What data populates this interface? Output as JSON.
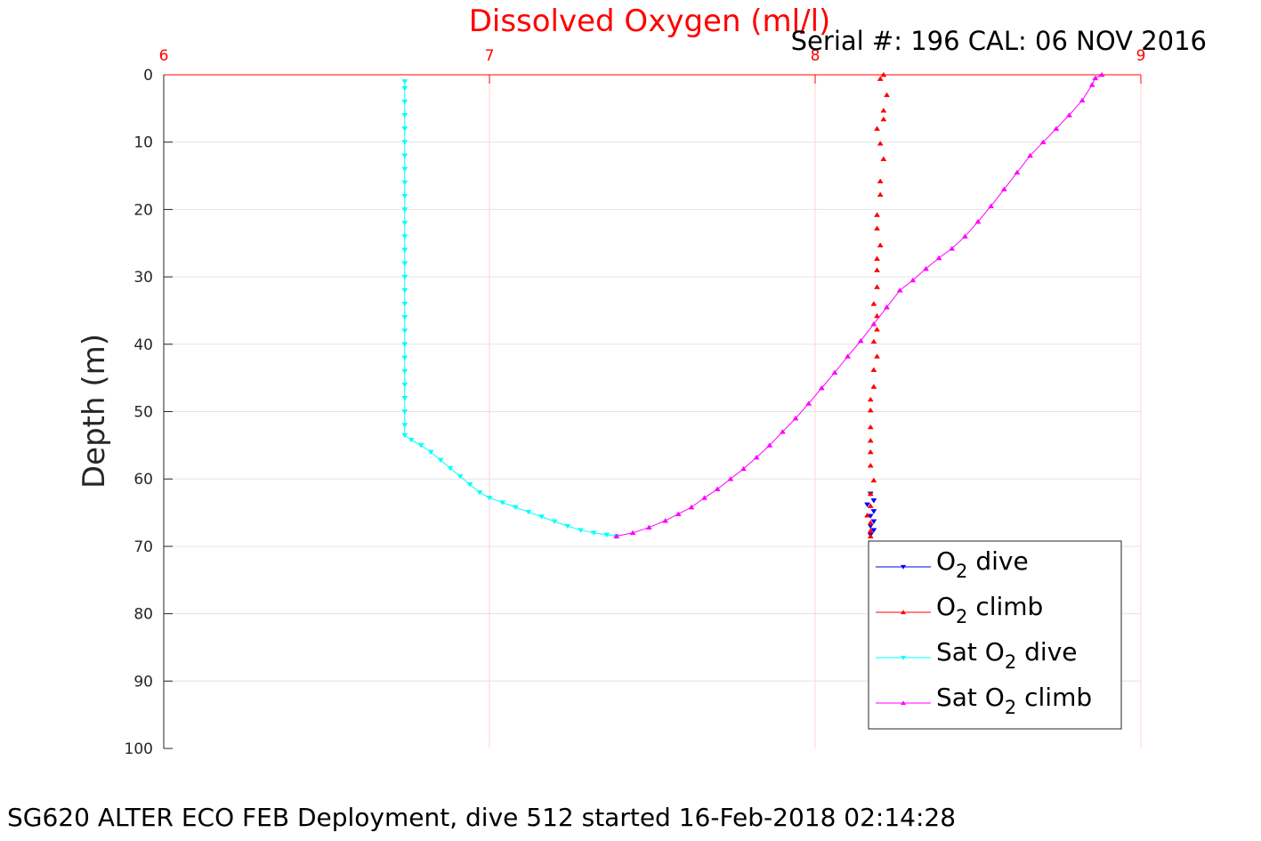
{
  "chart_data": {
    "type": "line",
    "title": "Dissolved Oxygen (ml/l)",
    "serial": "Serial #: 196  CAL: 06 NOV 2016",
    "caption": "SG620 ALTER ECO FEB Deployment, dive 512 started 16-Feb-2018 02:14:28",
    "xlabel": "",
    "ylabel": "Depth (m)",
    "xlim": [
      6,
      9
    ],
    "ylim": [
      0,
      100
    ],
    "y_reversed": true,
    "x_axis_position": "top",
    "x_ticks": [
      "6",
      "7",
      "8",
      "9"
    ],
    "y_ticks": [
      "0",
      "10",
      "20",
      "30",
      "40",
      "50",
      "60",
      "70",
      "80",
      "90",
      "100"
    ],
    "grid": true,
    "legend_position": "bottom-right",
    "legend": [
      {
        "prefix": "O",
        "sub": "2",
        "suffix": " dive"
      },
      {
        "prefix": "O",
        "sub": "2",
        "suffix": " climb"
      },
      {
        "prefix": "Sat O",
        "sub": "2",
        "suffix": " dive"
      },
      {
        "prefix": "Sat O",
        "sub": "2",
        "suffix": " climb"
      }
    ],
    "series": [
      {
        "name": "O2 dive",
        "color": "#0000ff",
        "marker": "down",
        "line": false,
        "points": [
          [
            8.17,
            62.2
          ],
          [
            8.18,
            63.2
          ],
          [
            8.16,
            63.8
          ],
          [
            8.18,
            64.8
          ],
          [
            8.17,
            65.5
          ],
          [
            8.18,
            66.3
          ],
          [
            8.17,
            67.0
          ],
          [
            8.18,
            67.6
          ],
          [
            8.17,
            68.3
          ]
        ]
      },
      {
        "name": "O2 climb",
        "color": "#ff0000",
        "marker": "up",
        "line": false,
        "points": [
          [
            8.21,
            0
          ],
          [
            8.2,
            0.6
          ],
          [
            8.22,
            3.0
          ],
          [
            8.21,
            5.3
          ],
          [
            8.21,
            6.6
          ],
          [
            8.19,
            8.0
          ],
          [
            8.2,
            10.2
          ],
          [
            8.21,
            12.5
          ],
          [
            8.2,
            15.8
          ],
          [
            8.2,
            17.8
          ],
          [
            8.19,
            20.8
          ],
          [
            8.19,
            22.8
          ],
          [
            8.2,
            25.3
          ],
          [
            8.19,
            27.3
          ],
          [
            8.19,
            29.0
          ],
          [
            8.19,
            31.5
          ],
          [
            8.18,
            34.0
          ],
          [
            8.19,
            35.8
          ],
          [
            8.19,
            37.8
          ],
          [
            8.18,
            39.6
          ],
          [
            8.19,
            41.8
          ],
          [
            8.18,
            43.8
          ],
          [
            8.18,
            46.3
          ],
          [
            8.17,
            48.2
          ],
          [
            8.17,
            49.8
          ],
          [
            8.17,
            52.3
          ],
          [
            8.17,
            54.3
          ],
          [
            8.17,
            56.0
          ],
          [
            8.17,
            58.0
          ],
          [
            8.18,
            60.2
          ],
          [
            8.17,
            62.2
          ],
          [
            8.17,
            64.0
          ],
          [
            8.16,
            65.4
          ],
          [
            8.17,
            66.5
          ],
          [
            8.17,
            67.7
          ],
          [
            8.17,
            68.5
          ]
        ]
      },
      {
        "name": "Sat O2 dive",
        "color": "#00ffff",
        "marker": "down",
        "line": true,
        "points": [
          [
            6.74,
            1
          ],
          [
            6.74,
            2
          ],
          [
            6.74,
            4
          ],
          [
            6.74,
            6
          ],
          [
            6.74,
            8
          ],
          [
            6.74,
            10
          ],
          [
            6.74,
            12
          ],
          [
            6.74,
            14
          ],
          [
            6.74,
            16
          ],
          [
            6.74,
            18
          ],
          [
            6.74,
            20
          ],
          [
            6.74,
            22
          ],
          [
            6.74,
            24
          ],
          [
            6.74,
            26
          ],
          [
            6.74,
            28
          ],
          [
            6.74,
            30
          ],
          [
            6.74,
            32
          ],
          [
            6.74,
            34
          ],
          [
            6.74,
            36
          ],
          [
            6.74,
            38
          ],
          [
            6.74,
            40
          ],
          [
            6.74,
            42
          ],
          [
            6.74,
            44
          ],
          [
            6.74,
            46
          ],
          [
            6.74,
            48
          ],
          [
            6.74,
            50
          ],
          [
            6.74,
            52
          ],
          [
            6.74,
            53.5
          ],
          [
            6.76,
            54.2
          ],
          [
            6.79,
            55.0
          ],
          [
            6.82,
            56.0
          ],
          [
            6.85,
            57.2
          ],
          [
            6.88,
            58.4
          ],
          [
            6.91,
            59.6
          ],
          [
            6.94,
            60.8
          ],
          [
            6.97,
            62.0
          ],
          [
            7.0,
            62.8
          ],
          [
            7.04,
            63.5
          ],
          [
            7.08,
            64.2
          ],
          [
            7.12,
            64.9
          ],
          [
            7.16,
            65.6
          ],
          [
            7.2,
            66.3
          ],
          [
            7.24,
            67.0
          ],
          [
            7.28,
            67.6
          ],
          [
            7.32,
            68.0
          ],
          [
            7.36,
            68.3
          ],
          [
            7.39,
            68.5
          ]
        ]
      },
      {
        "name": "Sat O2 climb",
        "color": "#ff00ff",
        "marker": "up",
        "line": true,
        "points": [
          [
            7.39,
            68.5
          ],
          [
            7.44,
            68.0
          ],
          [
            7.49,
            67.2
          ],
          [
            7.54,
            66.2
          ],
          [
            7.58,
            65.2
          ],
          [
            7.62,
            64.2
          ],
          [
            7.66,
            62.8
          ],
          [
            7.7,
            61.5
          ],
          [
            7.74,
            60.0
          ],
          [
            7.78,
            58.5
          ],
          [
            7.82,
            56.8
          ],
          [
            7.86,
            55.0
          ],
          [
            7.9,
            53.0
          ],
          [
            7.94,
            51.0
          ],
          [
            7.98,
            48.8
          ],
          [
            8.02,
            46.5
          ],
          [
            8.06,
            44.2
          ],
          [
            8.1,
            41.8
          ],
          [
            8.14,
            39.5
          ],
          [
            8.18,
            37.0
          ],
          [
            8.22,
            34.5
          ],
          [
            8.26,
            32.0
          ],
          [
            8.3,
            30.5
          ],
          [
            8.34,
            28.8
          ],
          [
            8.38,
            27.2
          ],
          [
            8.42,
            25.8
          ],
          [
            8.46,
            24.0
          ],
          [
            8.5,
            21.8
          ],
          [
            8.54,
            19.5
          ],
          [
            8.58,
            17.0
          ],
          [
            8.62,
            14.5
          ],
          [
            8.66,
            12.0
          ],
          [
            8.7,
            10.0
          ],
          [
            8.74,
            8.0
          ],
          [
            8.78,
            6.0
          ],
          [
            8.82,
            3.8
          ],
          [
            8.85,
            1.5
          ],
          [
            8.86,
            0.5
          ],
          [
            8.88,
            0
          ]
        ]
      }
    ]
  }
}
